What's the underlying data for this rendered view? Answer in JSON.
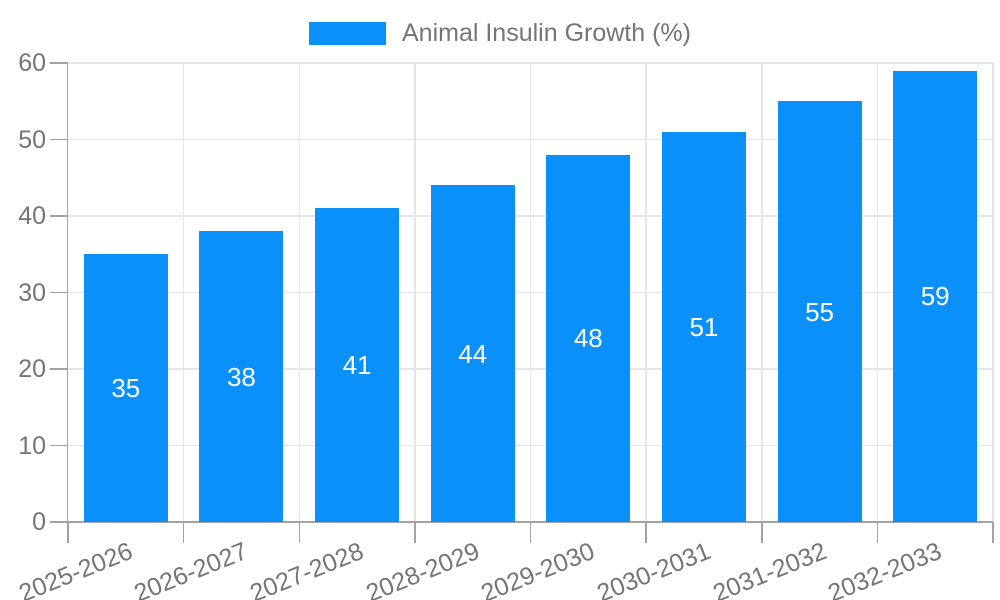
{
  "chart_data": {
    "type": "bar",
    "title": "",
    "legend": [
      "Animal Insulin Growth (%)"
    ],
    "legend_position": "top",
    "categories": [
      "2025-2026",
      "2026-2027",
      "2027-2028",
      "2028-2029",
      "2029-2030",
      "2030-2031",
      "2031-2032",
      "2032-2033"
    ],
    "values": [
      35,
      38,
      41,
      44,
      48,
      51,
      55,
      59
    ],
    "xlabel": "",
    "ylabel": "",
    "ylim": [
      0,
      60
    ],
    "ytick_step": 10,
    "yticks": [
      0,
      10,
      20,
      30,
      40,
      50,
      60
    ],
    "grid": true,
    "value_labels": "centered-inside-bars-white",
    "x_label_rotation_deg": -22,
    "colors": {
      "bar": "#0a90f8",
      "value_label": "#ffffff",
      "axis_text": "#757575",
      "axis_line": "#a3a3a3",
      "gridline": "#e6e6e6",
      "background": "#ffffff"
    }
  }
}
